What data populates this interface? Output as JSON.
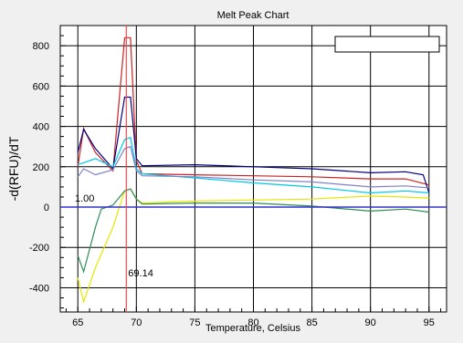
{
  "chart_data": {
    "type": "line",
    "title": "Melt Peak Chart",
    "xlabel": "Temperature, Celsius",
    "ylabel": "-d(RFU)/dT",
    "xlim": [
      63.5,
      96.5
    ],
    "ylim": [
      -520,
      900
    ],
    "x_ticks": [
      "65",
      "70",
      "75",
      "80",
      "85",
      "90",
      "95"
    ],
    "y_ticks": [
      "-400",
      "-200",
      "0",
      "200",
      "400",
      "600",
      "800"
    ],
    "grid": true,
    "legend": "top-right (empty)",
    "threshold": {
      "value": 0,
      "label": "1.00",
      "color": "#3333cc"
    },
    "marker": {
      "value": 69.14,
      "label": "69.14",
      "color": "#ff4444"
    },
    "series": [
      {
        "color": "#cc2222",
        "points": [
          [
            65,
            200
          ],
          [
            65.5,
            390
          ],
          [
            66.5,
            270
          ],
          [
            68,
            180
          ],
          [
            69,
            840
          ],
          [
            69.5,
            840
          ],
          [
            70,
            230
          ],
          [
            70.5,
            165
          ],
          [
            75,
            160
          ],
          [
            80,
            155
          ],
          [
            85,
            150
          ],
          [
            90,
            140
          ],
          [
            93,
            140
          ],
          [
            95,
            110
          ]
        ]
      },
      {
        "color": "#000080",
        "points": [
          [
            65,
            270
          ],
          [
            65.5,
            385
          ],
          [
            66.5,
            290
          ],
          [
            68,
            190
          ],
          [
            69,
            545
          ],
          [
            69.5,
            545
          ],
          [
            70,
            240
          ],
          [
            70.5,
            205
          ],
          [
            75,
            210
          ],
          [
            80,
            200
          ],
          [
            85,
            190
          ],
          [
            90,
            170
          ],
          [
            93,
            175
          ],
          [
            94.5,
            160
          ],
          [
            95,
            70
          ]
        ]
      },
      {
        "color": "#00c8e6",
        "points": [
          [
            65,
            210
          ],
          [
            65.5,
            220
          ],
          [
            66.5,
            240
          ],
          [
            68,
            200
          ],
          [
            69,
            335
          ],
          [
            69.5,
            345
          ],
          [
            70,
            190
          ],
          [
            70.5,
            165
          ],
          [
            75,
            145
          ],
          [
            80,
            120
          ],
          [
            85,
            100
          ],
          [
            90,
            70
          ],
          [
            93,
            80
          ],
          [
            95,
            70
          ]
        ]
      },
      {
        "color": "#8080c8",
        "points": [
          [
            65,
            150
          ],
          [
            65.5,
            190
          ],
          [
            66.5,
            160
          ],
          [
            68,
            185
          ],
          [
            69,
            290
          ],
          [
            69.5,
            300
          ],
          [
            70,
            180
          ],
          [
            70.5,
            155
          ],
          [
            75,
            150
          ],
          [
            80,
            135
          ],
          [
            85,
            125
          ],
          [
            90,
            100
          ],
          [
            93,
            105
          ],
          [
            95,
            95
          ]
        ]
      },
      {
        "color": "#e6e600",
        "points": [
          [
            65,
            -350
          ],
          [
            65.5,
            -470
          ],
          [
            66.5,
            -300
          ],
          [
            68,
            -100
          ],
          [
            69,
            80
          ],
          [
            69.5,
            90
          ],
          [
            70,
            40
          ],
          [
            70.5,
            20
          ],
          [
            75,
            30
          ],
          [
            80,
            35
          ],
          [
            85,
            40
          ],
          [
            90,
            55
          ],
          [
            93,
            50
          ],
          [
            95,
            45
          ]
        ]
      },
      {
        "color": "#2e8b57",
        "points": [
          [
            65,
            -240
          ],
          [
            65.5,
            -320
          ],
          [
            66.5,
            -100
          ],
          [
            67,
            -10
          ],
          [
            68,
            10
          ],
          [
            69,
            80
          ],
          [
            69.5,
            90
          ],
          [
            70,
            40
          ],
          [
            70.5,
            15
          ],
          [
            75,
            20
          ],
          [
            80,
            20
          ],
          [
            85,
            5
          ],
          [
            90,
            -20
          ],
          [
            93,
            -10
          ],
          [
            95,
            -25
          ]
        ]
      }
    ]
  }
}
